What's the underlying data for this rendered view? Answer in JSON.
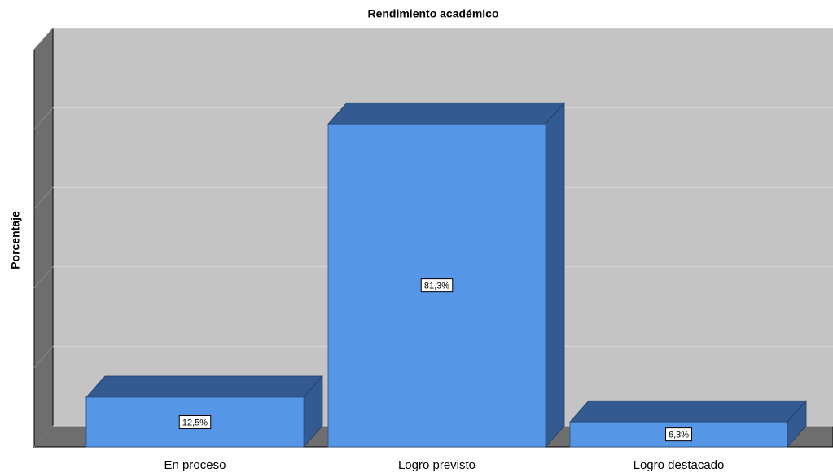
{
  "chart_data": {
    "type": "bar3d",
    "title": "Rendimiento académico",
    "y_label": "Porcentaje",
    "categories": [
      "En proceso",
      "Logro previsto",
      "Logro destacado"
    ],
    "values": [
      12.5,
      81.3,
      6.3
    ],
    "value_labels": [
      "12,5%",
      "81,3%",
      "6,3%"
    ],
    "color": "#5596e6",
    "side_color": "#335b92",
    "ylim": [
      0,
      100
    ],
    "yticks": [
      0,
      20,
      40,
      60,
      80,
      100
    ],
    "grid": true
  }
}
